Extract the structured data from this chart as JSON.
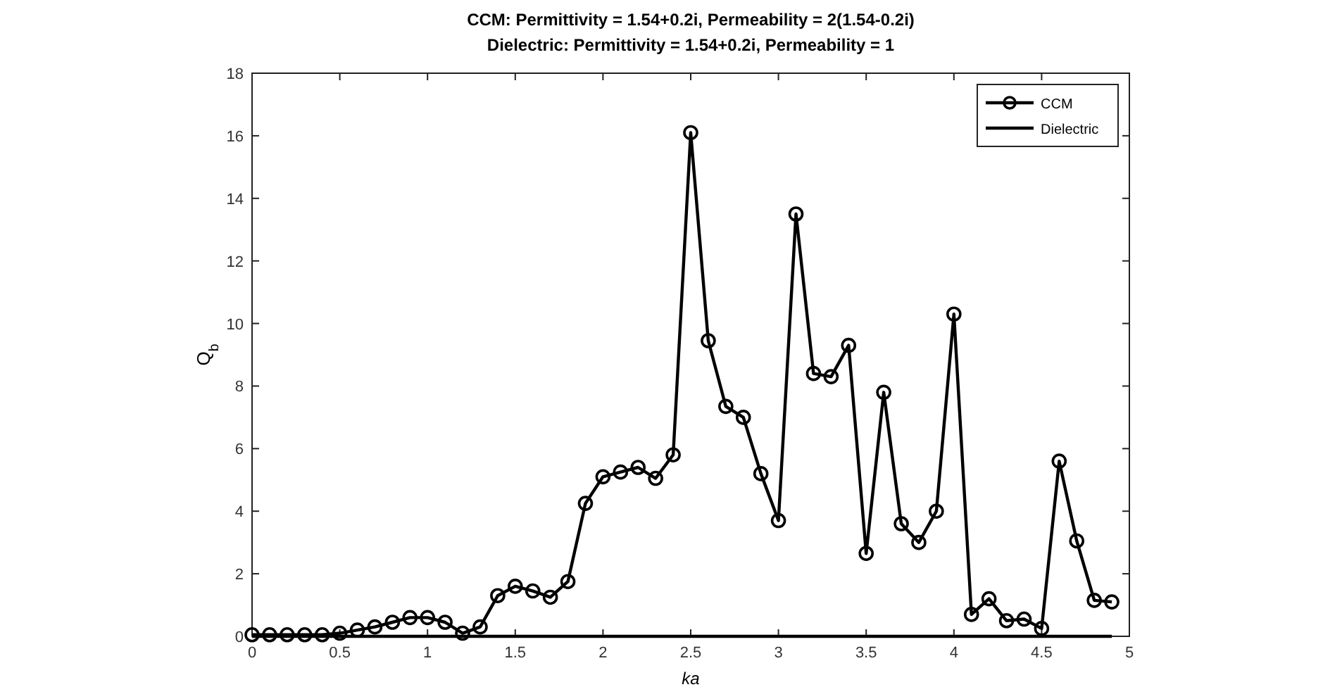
{
  "chart_data": {
    "type": "line",
    "title": "CCM: Permittivity = 1.54+0.2i, Permeability = 2(1.54-0.2i)",
    "subtitle": "Dielectric: Permittivity = 1.54+0.2i, Permeability = 1",
    "xlabel": "ka",
    "ylabel": "Q$_{b}$",
    "x": [
      0,
      0.1,
      0.2,
      0.3,
      0.4,
      0.5,
      0.6,
      0.7,
      0.8,
      0.9,
      1,
      1.1,
      1.2,
      1.3,
      1.4,
      1.5,
      1.6,
      1.7,
      1.8,
      1.9,
      2,
      2.1,
      2.2,
      2.3,
      2.4,
      2.5,
      2.6,
      2.7,
      2.8,
      2.9,
      3,
      3.1,
      3.2,
      3.3,
      3.4,
      3.5,
      3.6,
      3.7,
      3.8,
      3.9,
      4,
      4.1,
      4.2,
      4.3,
      4.4,
      4.5,
      4.6,
      4.7,
      4.8,
      4.9
    ],
    "series": [
      {
        "name": "CCM",
        "color": "#000000",
        "marker": "circle",
        "values": [
          0.05,
          0.05,
          0.05,
          0.05,
          0.05,
          0.1,
          0.2,
          0.3,
          0.45,
          0.6,
          0.6,
          0.45,
          0.1,
          0.3,
          1.3,
          1.6,
          1.45,
          1.25,
          1.75,
          4.25,
          5.1,
          5.25,
          5.4,
          5.05,
          5.8,
          16.1,
          9.45,
          7.35,
          7,
          5.2,
          3.7,
          13.5,
          8.4,
          8.3,
          9.3,
          2.65,
          7.8,
          3.6,
          3,
          4,
          10.3,
          0.7,
          1.2,
          0.5,
          0.55,
          0.25,
          5.6,
          3.05,
          1.15,
          1.1
        ]
      },
      {
        "name": "Dielectric",
        "color": "#000000",
        "marker": "none",
        "values": [
          0,
          0,
          0,
          0,
          0,
          0,
          0,
          0,
          0,
          0,
          0,
          0,
          0,
          0,
          0,
          0,
          0,
          0,
          0,
          0,
          0,
          0,
          0,
          0,
          0,
          0,
          0,
          0,
          0,
          0,
          0,
          0,
          0,
          0,
          0,
          0,
          0,
          0,
          0,
          0,
          0,
          0,
          0,
          0,
          0,
          0,
          0,
          0,
          0,
          0
        ]
      }
    ],
    "xlim": [
      0,
      5
    ],
    "xticks": [
      0,
      0.5,
      1,
      1.5,
      2,
      2.5,
      3,
      3.5,
      4,
      4.5,
      5
    ],
    "ylim": [
      0,
      18
    ],
    "yticks": [
      0,
      2,
      4,
      6,
      8,
      10,
      12,
      14,
      16,
      18
    ],
    "grid": false,
    "legend": "top right"
  }
}
